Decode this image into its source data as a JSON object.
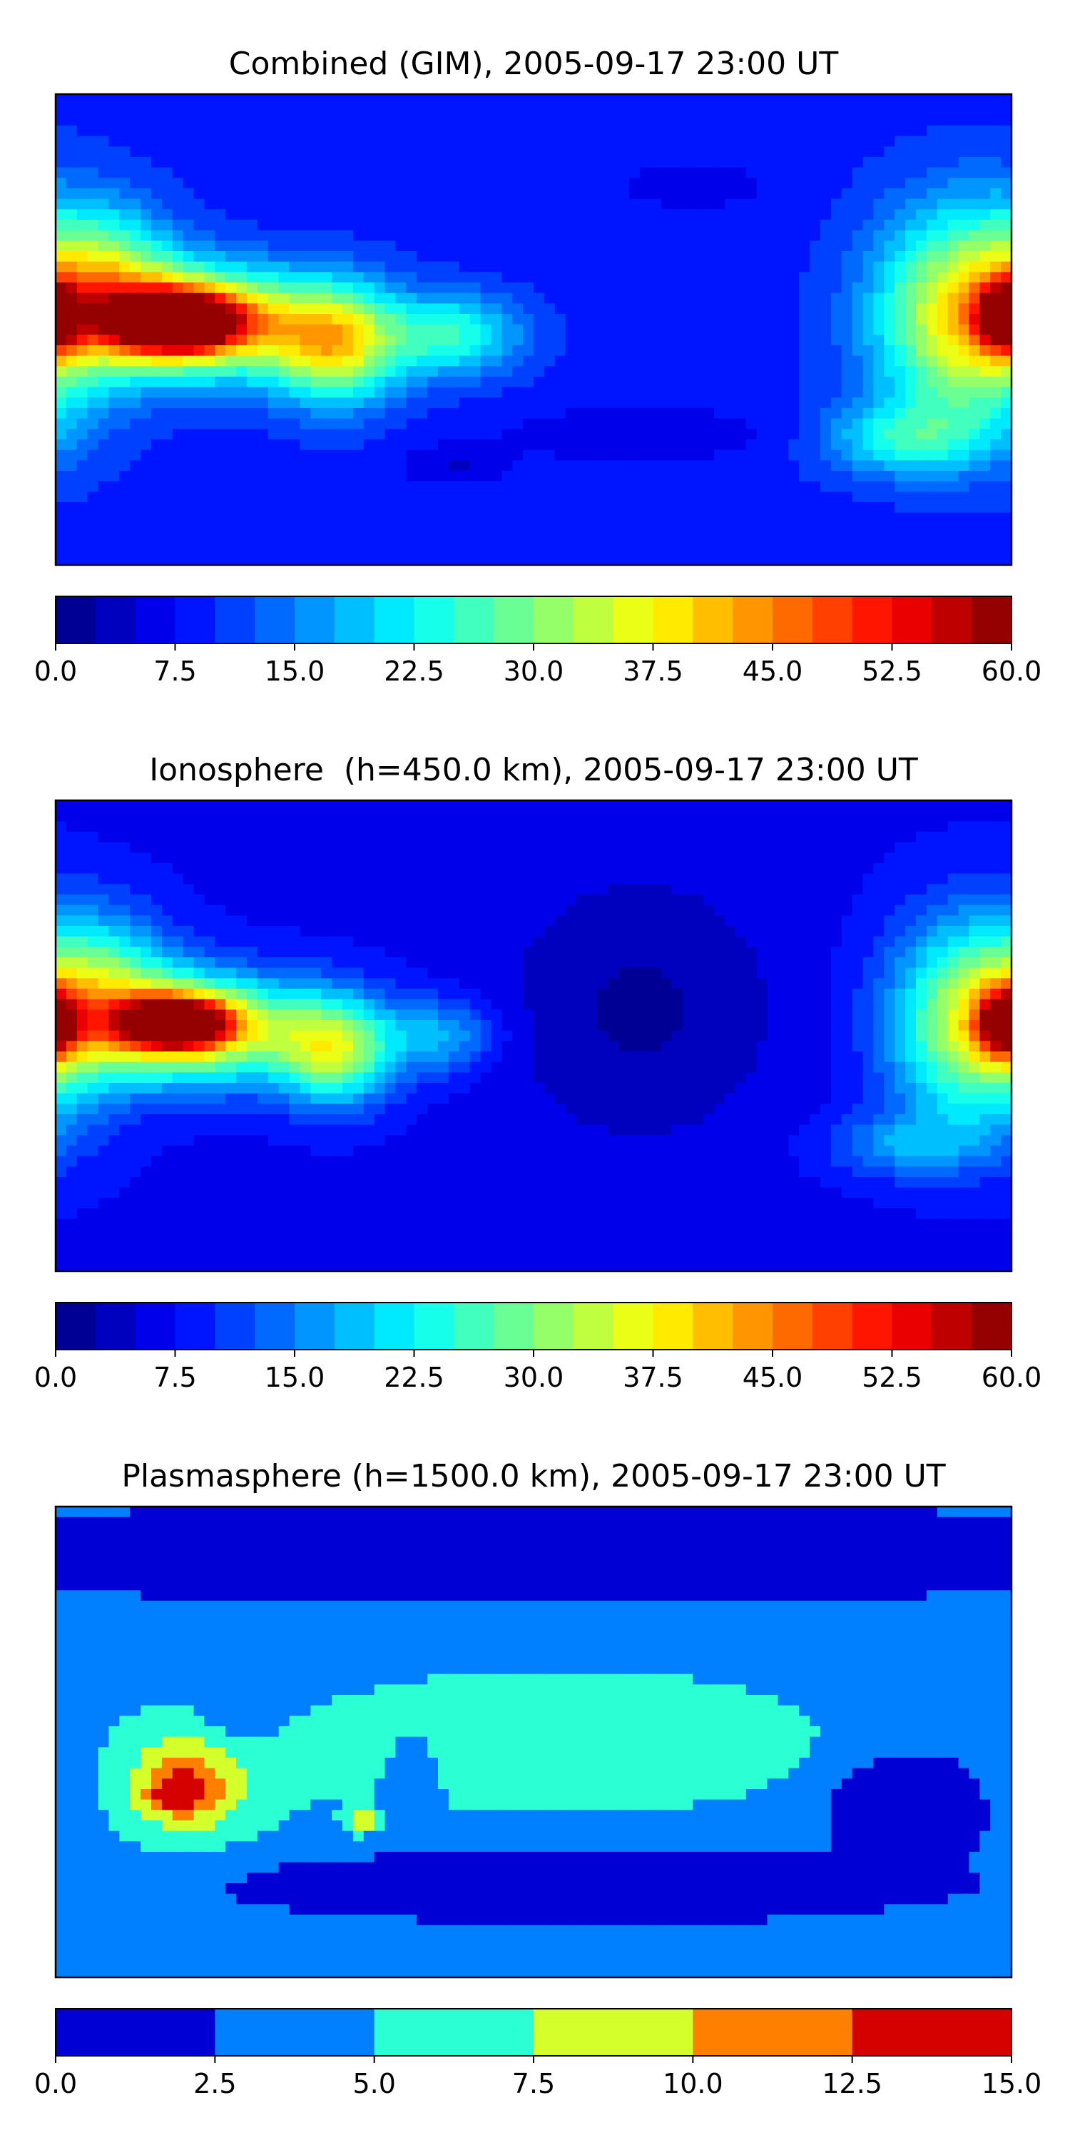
{
  "chart_data": [
    {
      "type": "heatmap",
      "title": "Combined (GIM), 2005-09-17 23:00 UT",
      "xlabel": "",
      "ylabel": "",
      "colorbar": {
        "min": 0,
        "max": 60,
        "levels": 24,
        "ticks": [
          0,
          7.5,
          15,
          22.5,
          30,
          37.5,
          45,
          52.5,
          60
        ],
        "tick_labels": [
          "0.0",
          "7.5",
          "15.0",
          "22.5",
          "30.0",
          "37.5",
          "45.0",
          "52.5",
          "60.0"
        ]
      },
      "background_value": 9,
      "features": [
        {
          "lon": -130,
          "lat": 3,
          "value": 48,
          "rx": 40,
          "ry": 20
        },
        {
          "lon": -135,
          "lat": 3,
          "value": 54,
          "rx": 22,
          "ry": 10
        },
        {
          "lon": -132,
          "lat": 4,
          "value": 57,
          "rx": 9,
          "ry": 5
        },
        {
          "lon": -75,
          "lat": -5,
          "value": 38,
          "rx": 25,
          "ry": 22
        },
        {
          "lon": -30,
          "lat": -2,
          "value": 25,
          "rx": 25,
          "ry": 15
        },
        {
          "lon": 165,
          "lat": 5,
          "value": 40,
          "rx": 35,
          "ry": 40
        },
        {
          "lon": 178,
          "lat": 5,
          "value": 44,
          "rx": 10,
          "ry": 12
        },
        {
          "lon": 140,
          "lat": -42,
          "value": 22,
          "rx": 30,
          "ry": 14
        },
        {
          "lon": -160,
          "lat": 22,
          "value": 24,
          "rx": 25,
          "ry": 25
        },
        {
          "lon": 60,
          "lat": 55,
          "value": 6,
          "rx": 30,
          "ry": 10
        },
        {
          "lon": 40,
          "lat": -40,
          "value": 5,
          "rx": 50,
          "ry": 10
        },
        {
          "lon": -30,
          "lat": -52,
          "value": 5,
          "rx": 20,
          "ry": 8
        }
      ]
    },
    {
      "type": "heatmap",
      "title": "Ionosphere  (h=450.0 km), 2005-09-17 23:00 UT",
      "xlabel": "",
      "ylabel": "",
      "colorbar": {
        "min": 0,
        "max": 60,
        "levels": 24,
        "ticks": [
          0,
          7.5,
          15,
          22.5,
          30,
          37.5,
          45,
          52.5,
          60
        ],
        "tick_labels": [
          "0.0",
          "7.5",
          "15.0",
          "22.5",
          "30.0",
          "37.5",
          "45.0",
          "52.5",
          "60.0"
        ]
      },
      "background_value": 7,
      "features": [
        {
          "lon": -130,
          "lat": 3,
          "value": 42,
          "rx": 40,
          "ry": 20
        },
        {
          "lon": -135,
          "lat": 5,
          "value": 49,
          "rx": 20,
          "ry": 9
        },
        {
          "lon": -75,
          "lat": -5,
          "value": 33,
          "rx": 22,
          "ry": 20
        },
        {
          "lon": -35,
          "lat": 0,
          "value": 18,
          "rx": 20,
          "ry": 14
        },
        {
          "lon": 168,
          "lat": 5,
          "value": 36,
          "rx": 32,
          "ry": 38
        },
        {
          "lon": 178,
          "lat": 5,
          "value": 40,
          "rx": 10,
          "ry": 12
        },
        {
          "lon": 40,
          "lat": 10,
          "value": 2,
          "rx": 50,
          "ry": 50
        },
        {
          "lon": -160,
          "lat": 22,
          "value": 20,
          "rx": 25,
          "ry": 25
        },
        {
          "lon": 140,
          "lat": -42,
          "value": 16,
          "rx": 28,
          "ry": 12
        }
      ]
    },
    {
      "type": "heatmap",
      "title": "Plasmasphere (h=1500.0 km), 2005-09-17 23:00 UT",
      "xlabel": "",
      "ylabel": "",
      "colorbar": {
        "min": 0,
        "max": 15,
        "levels": 6,
        "ticks": [
          0,
          2.5,
          5,
          7.5,
          10,
          12.5,
          15
        ],
        "tick_labels": [
          "0.0",
          "2.5",
          "5.0",
          "7.5",
          "10.0",
          "12.5",
          "15.0"
        ]
      },
      "background_value": 3.5,
      "features": [
        {
          "lon": 10,
          "lat": 0,
          "value": 7,
          "rx": 110,
          "ry": 30
        },
        {
          "lon": -130,
          "lat": -15,
          "value": 7,
          "rx": 35,
          "ry": 28
        },
        {
          "lon": -132,
          "lat": -18,
          "value": 9.5,
          "rx": 17,
          "ry": 14
        },
        {
          "lon": -135,
          "lat": -20,
          "value": 12,
          "rx": 7,
          "ry": 4
        },
        {
          "lon": -65,
          "lat": -30,
          "value": 9,
          "rx": 6,
          "ry": 5
        },
        {
          "lon": -45,
          "lat": -10,
          "value": 1,
          "rx": 10,
          "ry": 14
        },
        {
          "lon": -110,
          "lat": 10,
          "value": 1,
          "rx": 15,
          "ry": 10
        },
        {
          "lon": 140,
          "lat": -25,
          "value": -3,
          "rx": 25,
          "ry": 18
        },
        {
          "lon": 20,
          "lat": -55,
          "value": -5,
          "rx": 100,
          "ry": 10
        },
        {
          "lon": 0,
          "lat": 72,
          "value": -3,
          "rx": 200,
          "ry": 14
        },
        {
          "lon": -165,
          "lat": -65,
          "value": 5,
          "rx": 18,
          "ry": 12
        },
        {
          "lon": 160,
          "lat": -70,
          "value": 4,
          "rx": 30,
          "ry": 7
        }
      ]
    }
  ]
}
